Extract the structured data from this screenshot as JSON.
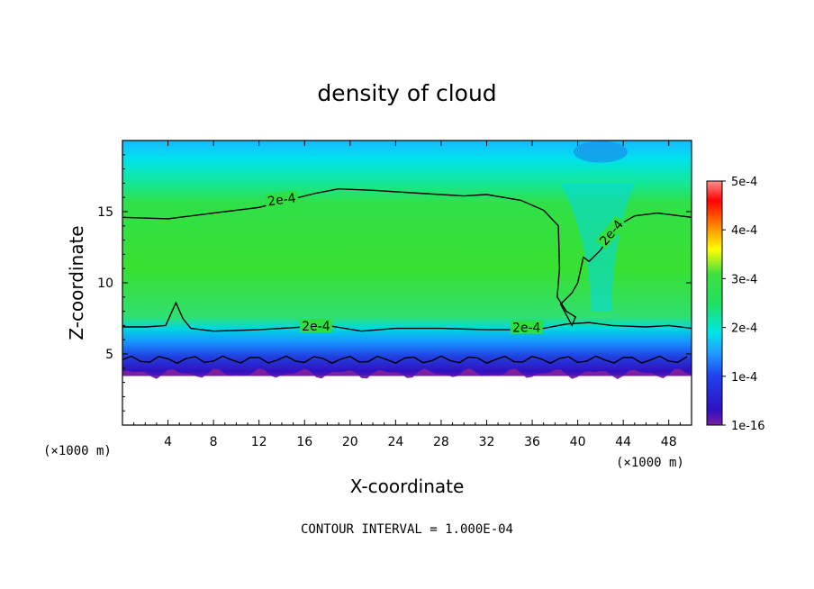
{
  "chart_data": {
    "type": "heatmap",
    "title": "density of cloud",
    "xlabel": "X-coordinate",
    "ylabel": "Z-coordinate",
    "x_unit_left": "(×1000 m)",
    "x_unit_right": "(×1000 m)",
    "xlim": [
      0,
      50
    ],
    "ylim": [
      0,
      20
    ],
    "x_ticks": [
      4,
      8,
      12,
      16,
      20,
      24,
      28,
      32,
      36,
      40,
      44,
      48
    ],
    "y_ticks": [
      5,
      10,
      15
    ],
    "colorbar": {
      "range": [
        0,
        0.0005
      ],
      "tick_labels": [
        "1e-16",
        "1e-4",
        "2e-4",
        "3e-4",
        "4e-4",
        "5e-4"
      ],
      "tick_values": [
        0,
        0.0001,
        0.0002,
        0.0003,
        0.0004,
        0.0005
      ],
      "colors": [
        "#7a1fa0",
        "#2020d8",
        "#20a0ff",
        "#00e6e6",
        "#20e020",
        "#40e040",
        "#ffff00",
        "#ff8000",
        "#ff0000",
        "#ff8080"
      ]
    },
    "contour_level": 0.0002,
    "contour_labels": [
      "2e-4",
      "2e-4",
      "2e-4",
      "2e-4"
    ],
    "contour_interval_text": "CONTOUR INTERVAL = 1.000E-04",
    "contour_2e4_upper": [
      [
        0,
        14.6
      ],
      [
        4,
        14.5
      ],
      [
        8,
        14.9
      ],
      [
        12,
        15.3
      ],
      [
        15,
        15.9
      ],
      [
        17,
        16.3
      ],
      [
        19,
        16.6
      ],
      [
        22,
        16.5
      ],
      [
        26,
        16.3
      ],
      [
        30,
        16.1
      ],
      [
        32,
        16.2
      ],
      [
        35,
        15.8
      ],
      [
        37,
        15.1
      ],
      [
        38.3,
        14
      ],
      [
        38.4,
        11
      ],
      [
        38.2,
        9
      ],
      [
        39,
        8
      ],
      [
        39.8,
        7.6
      ],
      [
        39.5,
        7
      ],
      [
        38.5,
        8.5
      ],
      [
        39.5,
        9.3
      ],
      [
        40,
        10
      ],
      [
        40.5,
        11.8
      ],
      [
        41,
        11.5
      ],
      [
        42,
        12.3
      ],
      [
        43.5,
        14
      ],
      [
        45,
        14.7
      ],
      [
        47,
        14.9
      ],
      [
        50,
        14.6
      ]
    ],
    "contour_2e4_lower": [
      [
        0,
        6.9
      ],
      [
        2,
        6.9
      ],
      [
        3.8,
        7.0
      ],
      [
        4.7,
        8.6
      ],
      [
        5.3,
        7.5
      ],
      [
        6,
        6.8
      ],
      [
        8,
        6.6
      ],
      [
        12,
        6.7
      ],
      [
        16,
        6.9
      ],
      [
        18,
        7.0
      ],
      [
        21,
        6.6
      ],
      [
        24,
        6.8
      ],
      [
        28,
        6.8
      ],
      [
        32,
        6.7
      ],
      [
        35,
        6.7
      ],
      [
        37,
        6.8
      ],
      [
        39,
        7.1
      ],
      [
        41,
        7.2
      ],
      [
        43,
        7.0
      ],
      [
        46,
        6.9
      ],
      [
        48,
        7.0
      ],
      [
        50,
        6.8
      ]
    ],
    "cloud_base_km": 3.2,
    "cloud_top_km": 19.8
  }
}
